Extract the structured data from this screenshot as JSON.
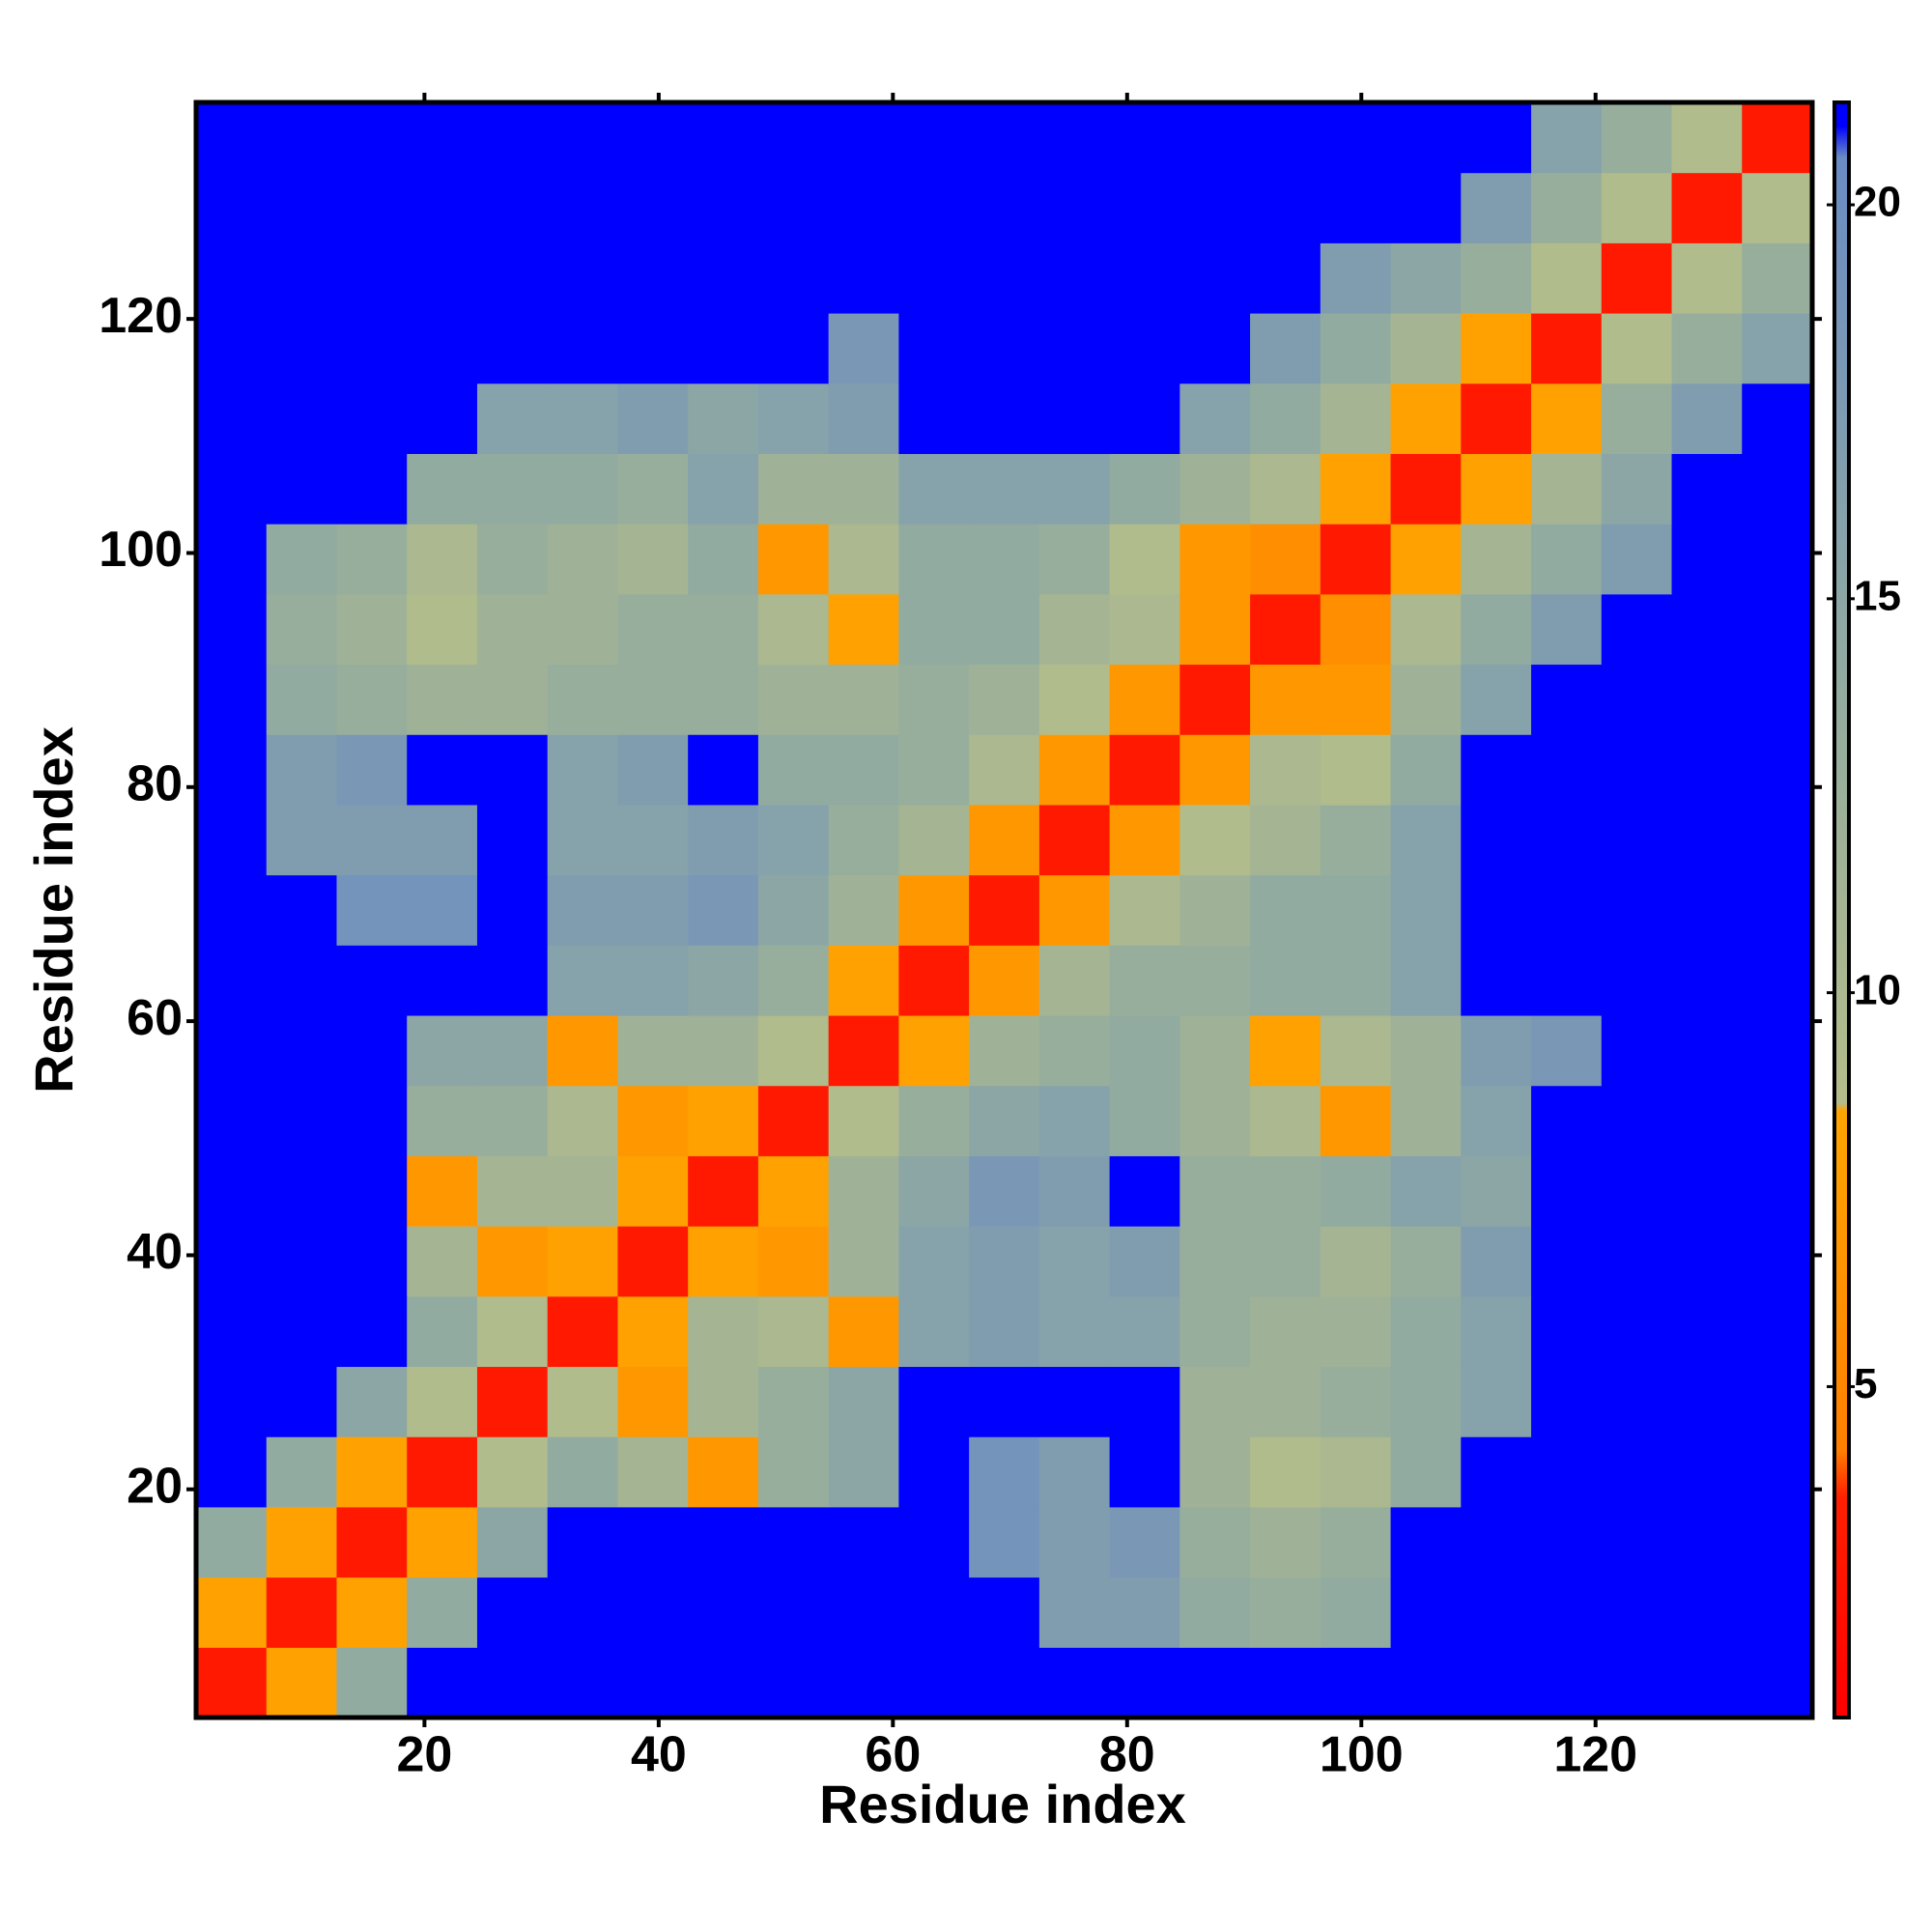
{
  "chart_data": {
    "type": "heatmap",
    "x_label": "Residue index",
    "y_label": "Residue index",
    "x": [
      3.5,
      9.5,
      15.5,
      21.5,
      27.5,
      33.5,
      39.5,
      45.5,
      51.5,
      57.5,
      63.5,
      69.5,
      75.5,
      81.5,
      87.5,
      93.5,
      99.5,
      105.5,
      111.5,
      117.5,
      123.5,
      129.5,
      135.5
    ],
    "y": [
      3.5,
      9.5,
      15.5,
      21.5,
      27.5,
      33.5,
      39.5,
      45.5,
      51.5,
      57.5,
      63.5,
      69.5,
      75.5,
      81.5,
      87.5,
      93.5,
      99.5,
      105.5,
      111.5,
      117.5,
      123.5,
      129.5,
      135.5
    ],
    "z": [
      [
        3,
        8,
        14,
        21,
        21,
        21,
        21,
        21,
        21,
        21,
        21,
        21,
        21,
        21,
        21,
        21,
        21,
        21,
        21,
        21,
        21,
        21,
        21
      ],
      [
        8,
        3,
        8,
        14,
        21,
        21,
        21,
        21,
        21,
        21,
        21,
        21,
        17,
        17,
        14,
        13,
        14,
        21,
        21,
        21,
        21,
        21,
        21
      ],
      [
        14,
        8,
        3,
        8,
        15,
        21,
        21,
        21,
        21,
        21,
        21,
        19,
        17,
        18,
        13,
        12,
        13,
        21,
        21,
        21,
        21,
        21,
        21
      ],
      [
        21,
        14,
        8,
        3,
        9,
        14,
        11,
        7,
        13,
        15,
        21,
        19,
        17,
        21,
        12,
        9,
        10,
        14,
        21,
        21,
        21,
        21,
        21
      ],
      [
        21,
        21,
        15,
        9,
        3,
        9,
        7,
        11,
        13,
        15,
        21,
        21,
        21,
        21,
        12,
        12,
        13,
        14,
        16,
        21,
        21,
        21,
        21
      ],
      [
        21,
        21,
        21,
        14,
        9,
        3,
        8,
        11,
        10,
        7,
        16,
        17,
        16,
        16,
        13,
        12,
        12,
        14,
        16,
        21,
        21,
        21,
        21
      ],
      [
        21,
        21,
        21,
        11,
        7,
        8,
        3,
        8,
        7,
        12,
        16,
        17,
        16,
        17,
        13,
        13,
        11,
        13,
        17,
        21,
        21,
        21,
        21
      ],
      [
        21,
        21,
        21,
        7,
        11,
        11,
        8,
        3,
        8,
        12,
        15,
        18,
        17,
        21,
        13,
        13,
        14,
        16,
        15,
        21,
        21,
        21,
        21
      ],
      [
        21,
        21,
        21,
        13,
        13,
        10,
        7,
        8,
        3,
        9,
        13,
        15,
        16,
        14,
        12,
        10,
        7,
        12,
        16,
        21,
        21,
        21,
        21
      ],
      [
        21,
        21,
        21,
        15,
        15,
        7,
        12,
        12,
        9,
        3,
        8,
        12,
        13,
        14,
        12,
        8,
        10,
        12,
        17,
        18,
        21,
        21,
        21
      ],
      [
        21,
        21,
        21,
        21,
        21,
        16,
        16,
        15,
        13,
        8,
        3,
        7,
        11,
        13,
        13,
        14,
        14,
        16,
        21,
        21,
        21,
        21,
        21
      ],
      [
        21,
        21,
        19,
        19,
        21,
        17,
        17,
        18,
        15,
        12,
        7,
        3,
        7,
        10,
        12,
        14,
        14,
        16,
        21,
        21,
        21,
        21,
        21
      ],
      [
        21,
        17,
        17,
        17,
        21,
        16,
        16,
        17,
        16,
        13,
        11,
        7,
        3,
        7,
        9,
        11,
        13,
        16,
        21,
        21,
        21,
        21,
        21
      ],
      [
        21,
        17,
        18,
        21,
        21,
        16,
        17,
        21,
        14,
        14,
        13,
        10,
        7,
        3,
        7,
        10,
        9,
        14,
        21,
        21,
        21,
        21,
        21
      ],
      [
        21,
        14,
        13,
        12,
        12,
        13,
        13,
        13,
        12,
        12,
        13,
        12,
        9,
        7,
        3,
        7,
        7,
        12,
        16,
        21,
        21,
        21,
        21
      ],
      [
        21,
        13,
        12,
        9,
        12,
        12,
        13,
        13,
        10,
        8,
        14,
        14,
        11,
        10,
        7,
        3,
        6,
        10,
        14,
        17,
        21,
        21,
        21
      ],
      [
        21,
        14,
        13,
        10,
        13,
        12,
        11,
        14,
        7,
        10,
        14,
        14,
        13,
        9,
        7,
        6,
        3,
        8,
        11,
        14,
        17,
        21,
        21
      ],
      [
        21,
        21,
        21,
        14,
        14,
        14,
        13,
        16,
        12,
        12,
        16,
        16,
        16,
        14,
        12,
        10,
        8,
        3,
        8,
        11,
        15,
        21,
        21
      ],
      [
        21,
        21,
        21,
        21,
        16,
        16,
        17,
        15,
        16,
        17,
        21,
        21,
        21,
        21,
        16,
        14,
        11,
        8,
        3,
        8,
        13,
        17,
        21
      ],
      [
        21,
        21,
        21,
        21,
        21,
        21,
        21,
        21,
        21,
        18,
        21,
        21,
        21,
        21,
        21,
        17,
        14,
        11,
        8,
        3,
        9,
        13,
        16
      ],
      [
        21,
        21,
        21,
        21,
        21,
        21,
        21,
        21,
        21,
        21,
        21,
        21,
        21,
        21,
        21,
        21,
        17,
        15,
        13,
        9,
        3,
        9,
        13
      ],
      [
        21,
        21,
        21,
        21,
        21,
        21,
        21,
        21,
        21,
        21,
        21,
        21,
        21,
        21,
        21,
        21,
        21,
        21,
        17,
        13,
        9,
        3,
        9
      ],
      [
        21,
        21,
        21,
        21,
        21,
        21,
        21,
        21,
        21,
        21,
        21,
        21,
        21,
        21,
        21,
        21,
        21,
        21,
        21,
        16,
        13,
        9,
        3
      ]
    ],
    "xlim": [
      0.5,
      138.5
    ],
    "ylim": [
      0.5,
      138.5
    ],
    "xticks": [
      20,
      40,
      60,
      80,
      100,
      120
    ],
    "yticks": [
      20,
      40,
      60,
      80,
      100,
      120
    ],
    "zlim": [
      0.8,
      21.3
    ],
    "zticks": [
      5,
      10,
      15,
      20
    ],
    "colorscale": [
      [
        0.8,
        "#ff0000"
      ],
      [
        3.6,
        "#ff2000"
      ],
      [
        4.2,
        "#ff7f00"
      ],
      [
        8.5,
        "#ffa500"
      ],
      [
        8.6,
        "#b4bd8a"
      ],
      [
        14,
        "#92aba0"
      ],
      [
        20.6,
        "#6a8cc4"
      ],
      [
        21,
        "#0000ff"
      ]
    ],
    "grid": false
  }
}
